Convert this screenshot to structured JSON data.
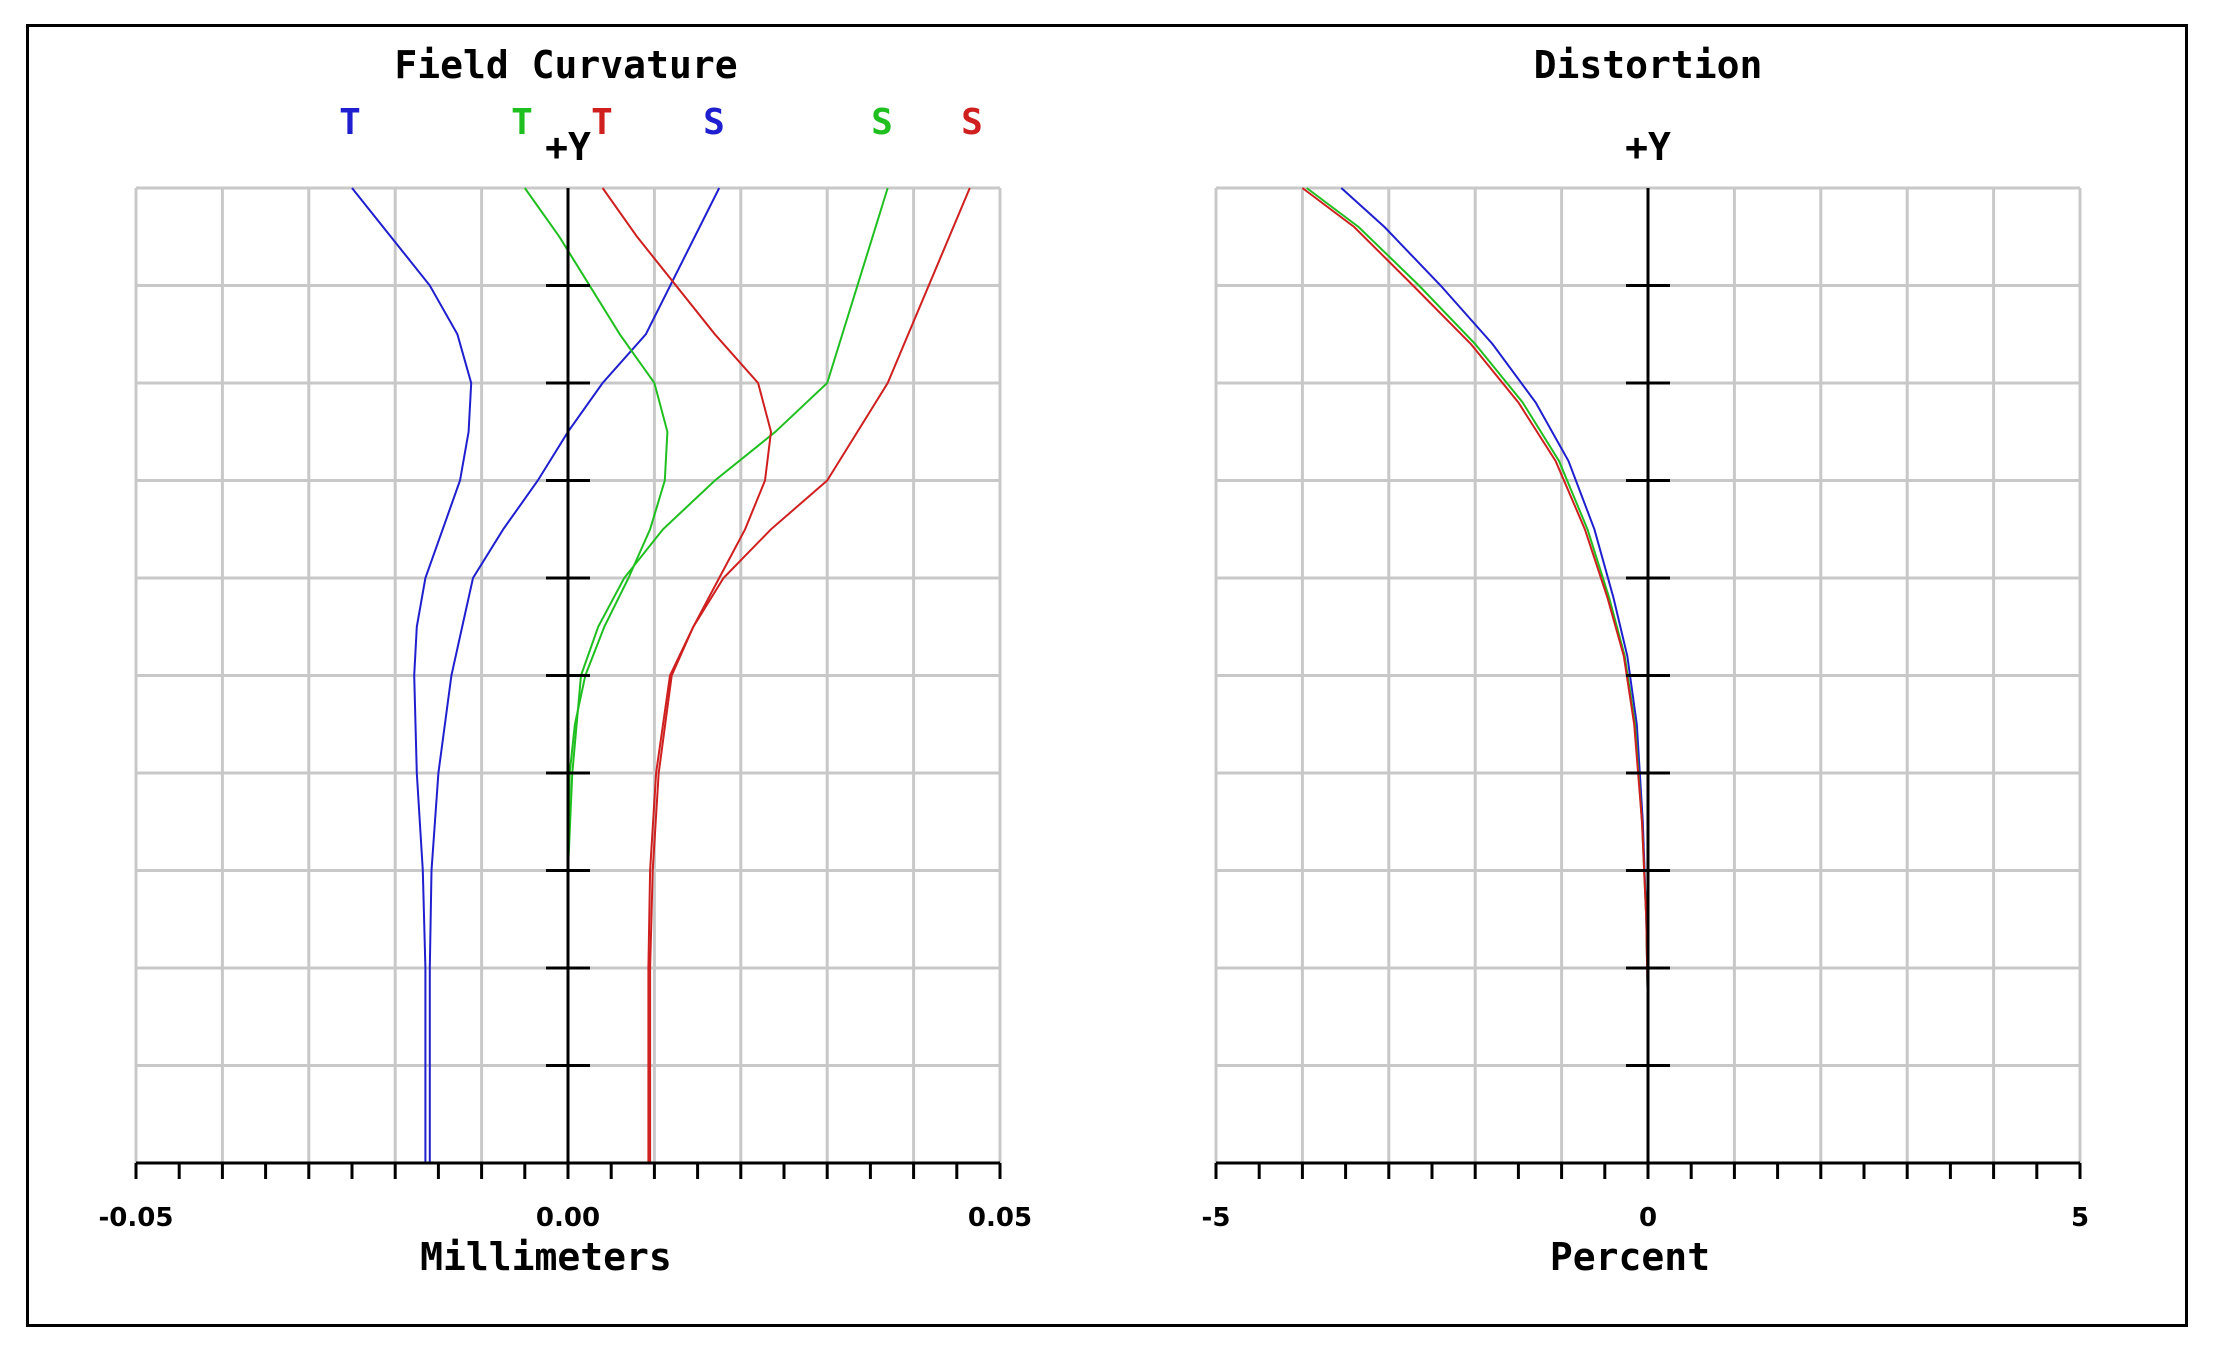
{
  "chart_data": [
    {
      "type": "line",
      "title": "Field Curvature",
      "xlabel": "Millimeters",
      "ylabel": "+Y",
      "xlim": [
        -0.05,
        0.05
      ],
      "ylim": [
        0,
        1
      ],
      "xticks": [
        "-0.05",
        "0.00",
        "0.05"
      ],
      "grid": true,
      "legend_labels": [
        {
          "text": "T",
          "color": "#1f1fcf"
        },
        {
          "text": "T",
          "color": "#1fbf1f"
        },
        {
          "text": "T",
          "color": "#cf1f1f"
        },
        {
          "text": "S",
          "color": "#1f1fcf"
        },
        {
          "text": "S",
          "color": "#1fbf1f"
        },
        {
          "text": "S",
          "color": "#cf1f1f"
        }
      ],
      "series": [
        {
          "color": "#1f1fcf",
          "x": [
            -0.0165,
            -0.0165,
            -0.0168,
            -0.0175,
            -0.0178,
            -0.0175,
            -0.0165,
            -0.0145,
            -0.0125,
            -0.0115,
            -0.0112,
            -0.0128,
            -0.016,
            -0.025
          ],
          "y": [
            0.0,
            0.2,
            0.3,
            0.4,
            0.5,
            0.55,
            0.6,
            0.65,
            0.7,
            0.75,
            0.8,
            0.85,
            0.9,
            1.0
          ]
        },
        {
          "color": "#1f1fcf",
          "x": [
            -0.016,
            -0.016,
            -0.0158,
            -0.015,
            -0.0135,
            -0.011,
            -0.0075,
            -0.0035,
            0.0,
            0.004,
            0.009,
            0.0175
          ],
          "y": [
            0.0,
            0.2,
            0.3,
            0.4,
            0.5,
            0.6,
            0.65,
            0.7,
            0.75,
            0.8,
            0.85,
            1.0
          ]
        },
        {
          "color": "#1fbf1f",
          "x": [
            0.0,
            0.0,
            0.0002,
            0.0008,
            0.002,
            0.0042,
            0.007,
            0.0095,
            0.0112,
            0.0115,
            0.01,
            0.006,
            -0.001,
            -0.005
          ],
          "y": [
            0.0,
            0.3,
            0.4,
            0.45,
            0.5,
            0.55,
            0.6,
            0.65,
            0.7,
            0.75,
            0.8,
            0.85,
            0.95,
            1.0
          ]
        },
        {
          "color": "#1fbf1f",
          "x": [
            0.0,
            0.0,
            0.0005,
            0.0015,
            0.0035,
            0.0065,
            0.011,
            0.017,
            0.024,
            0.03,
            0.037
          ],
          "y": [
            0.0,
            0.3,
            0.4,
            0.5,
            0.55,
            0.6,
            0.65,
            0.7,
            0.75,
            0.8,
            1.0
          ]
        },
        {
          "color": "#cf1f1f",
          "x": [
            0.0093,
            0.0093,
            0.0095,
            0.0102,
            0.0118,
            0.0145,
            0.0175,
            0.0205,
            0.0228,
            0.0235,
            0.022,
            0.017,
            0.008,
            0.004
          ],
          "y": [
            0.0,
            0.2,
            0.3,
            0.4,
            0.5,
            0.55,
            0.6,
            0.65,
            0.7,
            0.75,
            0.8,
            0.85,
            0.95,
            1.0
          ]
        },
        {
          "color": "#cf1f1f",
          "x": [
            0.0095,
            0.0095,
            0.0098,
            0.0105,
            0.012,
            0.0145,
            0.018,
            0.0235,
            0.03,
            0.037,
            0.0465
          ],
          "y": [
            0.0,
            0.2,
            0.3,
            0.4,
            0.5,
            0.55,
            0.6,
            0.65,
            0.7,
            0.8,
            1.0
          ]
        }
      ]
    },
    {
      "type": "line",
      "title": "Distortion",
      "xlabel": "Percent",
      "ylabel": "+Y",
      "xlim": [
        -5,
        5
      ],
      "ylim": [
        0,
        1
      ],
      "xticks": [
        "-5",
        "0",
        "5"
      ],
      "grid": true,
      "series": [
        {
          "color": "#1f1fcf",
          "x": [
            0.0,
            -0.02,
            -0.06,
            -0.13,
            -0.24,
            -0.4,
            -0.62,
            -0.92,
            -1.3,
            -1.8,
            -2.4,
            -3.05,
            -3.55
          ],
          "y": [
            0.15,
            0.25,
            0.35,
            0.45,
            0.52,
            0.58,
            0.65,
            0.72,
            0.78,
            0.84,
            0.9,
            0.96,
            1.0
          ]
        },
        {
          "color": "#1fbf1f",
          "x": [
            0.0,
            -0.02,
            -0.07,
            -0.15,
            -0.27,
            -0.45,
            -0.7,
            -1.03,
            -1.45,
            -2.0,
            -2.65,
            -3.35,
            -3.95
          ],
          "y": [
            0.15,
            0.25,
            0.35,
            0.45,
            0.52,
            0.58,
            0.65,
            0.72,
            0.78,
            0.84,
            0.9,
            0.96,
            1.0
          ]
        },
        {
          "color": "#cf1f1f",
          "x": [
            0.0,
            0.0,
            -0.02,
            -0.07,
            -0.16,
            -0.28,
            -0.47,
            -0.73,
            -1.07,
            -1.5,
            -2.05,
            -2.72,
            -3.4,
            -4.0
          ],
          "y": [
            0.0,
            0.15,
            0.25,
            0.35,
            0.45,
            0.52,
            0.58,
            0.65,
            0.72,
            0.78,
            0.84,
            0.9,
            0.96,
            1.0
          ]
        }
      ]
    }
  ]
}
